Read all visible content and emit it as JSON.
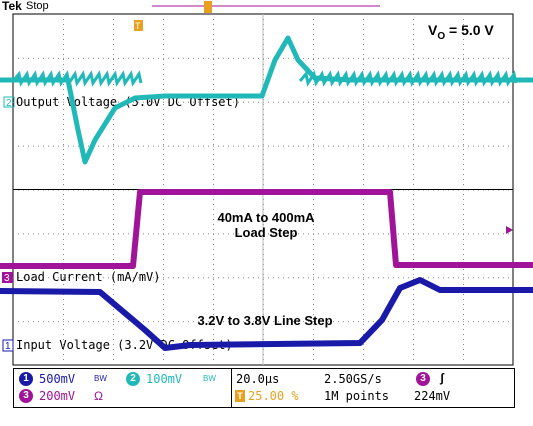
{
  "header": {
    "brand": "Tek",
    "acq_state": "Stop"
  },
  "annotations": {
    "vo": "V",
    "vo_sub": "O",
    "vo_rest": " = 5.0 V",
    "load_step_line1": "40mA to 400mA",
    "load_step_line2": "Load Step",
    "line_step": "3.2V to 3.8V Line Step"
  },
  "channels": {
    "ch2": {
      "marker": "2",
      "label": "Output Voltage (5.0V DC Offset)",
      "color": "#21b8b8"
    },
    "ch3": {
      "marker": "3",
      "label": "Load Current (mA/mV)",
      "color": "#a0149a"
    },
    "ch1": {
      "marker": "1",
      "label": "Input Voltage (3.2V DC Offset)",
      "color": "#1a1aa8"
    }
  },
  "trigger_marker": "T",
  "footer": {
    "ch1_num": "1",
    "ch1_scale": "500mV",
    "ch1_bw": "BW",
    "ch2_num": "2",
    "ch2_scale": "100mV",
    "ch2_bw": "BW",
    "ch3_num": "3",
    "ch3_scale": "200mV",
    "ch3_term": "Ω",
    "timebase": "20.0µs",
    "trigger_pos": "25.00 %",
    "sample_rate": "2.50GS/s",
    "record_length": "1M points",
    "trig_source": "3",
    "trig_slope": "ʃ",
    "trig_level": "224mV"
  },
  "chart_data": {
    "type": "line",
    "series": [
      {
        "name": "Output Voltage (5.0V DC Offset)",
        "color": "#21b8b8",
        "points": [
          [
            0,
            80
          ],
          [
            45,
            80
          ],
          [
            68,
            80
          ],
          [
            78,
            130
          ],
          [
            85,
            162
          ],
          [
            95,
            140
          ],
          [
            115,
            108
          ],
          [
            135,
            98
          ],
          [
            165,
            96
          ],
          [
            200,
            96
          ],
          [
            255,
            96
          ],
          [
            262,
            96
          ],
          [
            275,
            60
          ],
          [
            288,
            38
          ],
          [
            298,
            60
          ],
          [
            315,
            78
          ],
          [
            350,
            80
          ],
          [
            390,
            80
          ],
          [
            533,
            80
          ]
        ]
      },
      {
        "name": "Load Current (mA/mV)",
        "color": "#a0149a",
        "points": [
          [
            0,
            266
          ],
          [
            133,
            266
          ],
          [
            140,
            192
          ],
          [
            390,
            192
          ],
          [
            396,
            265
          ],
          [
            533,
            265
          ]
        ]
      },
      {
        "name": "Input Voltage (3.2V DC Offset)",
        "color": "#1a1aa8",
        "points": [
          [
            0,
            291
          ],
          [
            100,
            292
          ],
          [
            145,
            330
          ],
          [
            165,
            348
          ],
          [
            190,
            345
          ],
          [
            360,
            343
          ],
          [
            382,
            320
          ],
          [
            400,
            288
          ],
          [
            420,
            280
          ],
          [
            440,
            290
          ],
          [
            533,
            290
          ]
        ]
      }
    ]
  }
}
